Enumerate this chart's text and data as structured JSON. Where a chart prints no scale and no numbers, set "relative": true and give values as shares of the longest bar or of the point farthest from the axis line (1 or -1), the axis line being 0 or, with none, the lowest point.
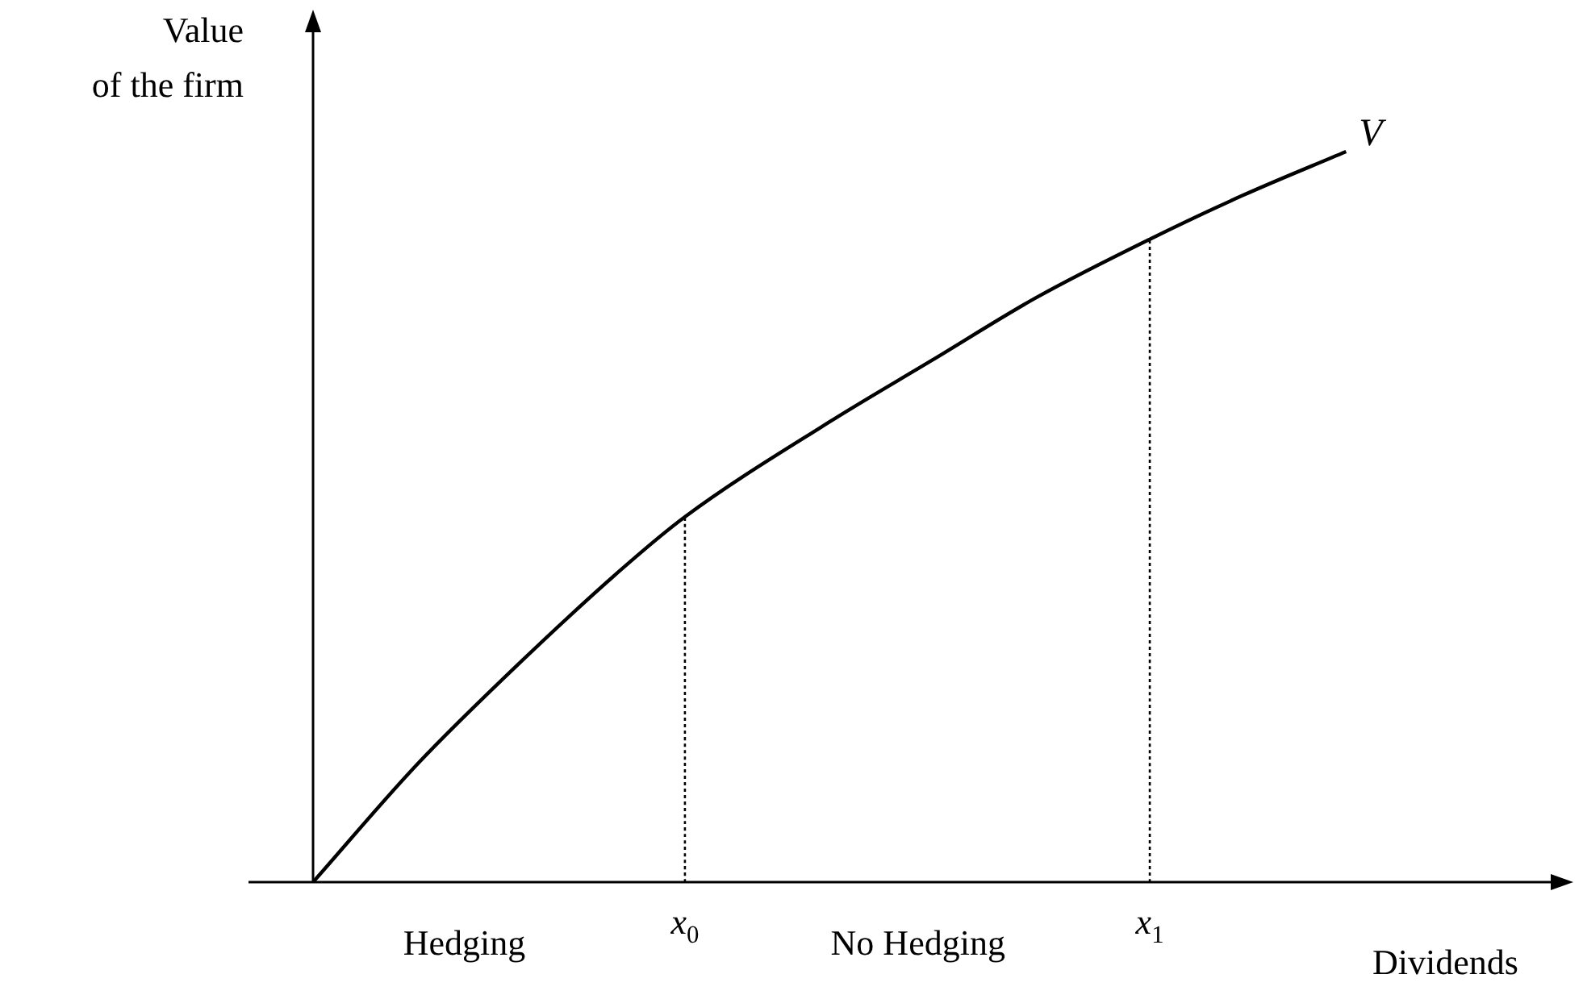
{
  "chart_data": {
    "type": "line",
    "relative": true,
    "xlabel": "Dividends",
    "ylabel": "Value\nof the firm",
    "xlim": [
      0,
      1.22
    ],
    "xticks": [
      {
        "value": 0.36,
        "label": "x$_{0}$"
      },
      {
        "value": 0.81,
        "label": "x$_{1}$"
      }
    ],
    "grid": false,
    "legend": false,
    "marker": "none",
    "series": [
      {
        "name": "V",
        "color": "#000000",
        "line_style": "solid",
        "x": [
          0,
          0.1,
          0.2,
          0.3,
          0.36,
          0.5,
          0.6,
          0.7,
          0.81,
          0.9,
          1
        ],
        "values": [
          0,
          0.16,
          0.3,
          0.43,
          0.5,
          0.63,
          0.715,
          0.8,
          0.88,
          0.94,
          1
        ]
      },
      {
        "color": "#000000",
        "line_style": "dotted",
        "x": [
          0.36,
          0.36
        ],
        "values": [
          0,
          0.5
        ]
      },
      {
        "color": "#000000",
        "line_style": "dotted",
        "x": [
          0.81,
          0.81
        ],
        "values": [
          0,
          0.88
        ]
      }
    ],
    "annotations": [
      "Hedging",
      "No Hedging"
    ]
  }
}
